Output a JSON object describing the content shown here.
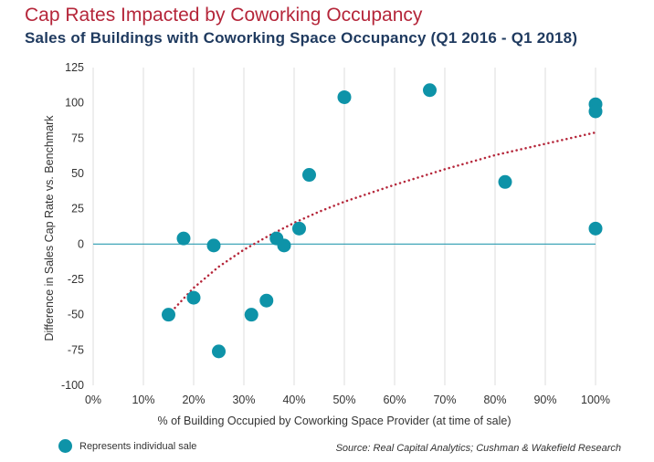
{
  "header": {
    "title": "Cap Rates Impacted by Coworking Occupancy",
    "subtitle": "Sales of Buildings with Coworking Space Occupancy (Q1 2016 - Q1 2018)"
  },
  "legend": {
    "label": "Represents individual sale",
    "marker_color": "#0e93a8"
  },
  "source": "Source: Real Capital Analytics; Cushman & Wakefield Research",
  "colors": {
    "points": "#0e93a8",
    "trendline": "#b5263a",
    "zero_line": "#2a9cb0",
    "grid": "#dddddd"
  },
  "chart_data": {
    "type": "scatter",
    "title": "Cap Rates Impacted by Coworking Occupancy",
    "subtitle": "Sales of Buildings with Coworking Space Occupancy (Q1 2016 - Q1 2018)",
    "xlabel": "% of Building Occupied by Coworking Space Provider (at time of sale)",
    "ylabel": "Difference in Sales Cap Rate vs. Benchmark",
    "xlim": [
      0,
      100
    ],
    "ylim": [
      -100,
      125
    ],
    "x_ticks": [
      0,
      10,
      20,
      30,
      40,
      50,
      60,
      70,
      80,
      90,
      100
    ],
    "x_tick_labels": [
      "0%",
      "10%",
      "20%",
      "30%",
      "40%",
      "50%",
      "60%",
      "70%",
      "80%",
      "90%",
      "100%"
    ],
    "y_ticks": [
      -100,
      -75,
      -50,
      -25,
      0,
      25,
      50,
      75,
      100,
      125
    ],
    "y_tick_labels": [
      "-100",
      "-75",
      "-50",
      "-25",
      "0",
      "25",
      "50",
      "75",
      "100",
      "125"
    ],
    "grid": "vertical",
    "legend_position": "bottom-left",
    "points": [
      {
        "x": 15,
        "y": -50
      },
      {
        "x": 18,
        "y": 4
      },
      {
        "x": 20,
        "y": -38
      },
      {
        "x": 24,
        "y": -1
      },
      {
        "x": 25,
        "y": -76
      },
      {
        "x": 31.5,
        "y": -50
      },
      {
        "x": 34.5,
        "y": -40
      },
      {
        "x": 36.5,
        "y": 4
      },
      {
        "x": 38,
        "y": -1
      },
      {
        "x": 41,
        "y": 11
      },
      {
        "x": 43,
        "y": 49
      },
      {
        "x": 50,
        "y": 104
      },
      {
        "x": 67,
        "y": 109
      },
      {
        "x": 82,
        "y": 44
      },
      {
        "x": 100,
        "y": 99
      },
      {
        "x": 100,
        "y": 94
      },
      {
        "x": 100,
        "y": 11
      }
    ],
    "trendline": {
      "type": "logarithmic",
      "x": [
        15,
        20,
        25,
        30,
        35,
        40,
        45,
        50,
        60,
        70,
        80,
        90,
        100
      ],
      "y": [
        -50,
        -31,
        -16,
        -4,
        6,
        15,
        23,
        30,
        42,
        53,
        63,
        71,
        79
      ]
    }
  }
}
